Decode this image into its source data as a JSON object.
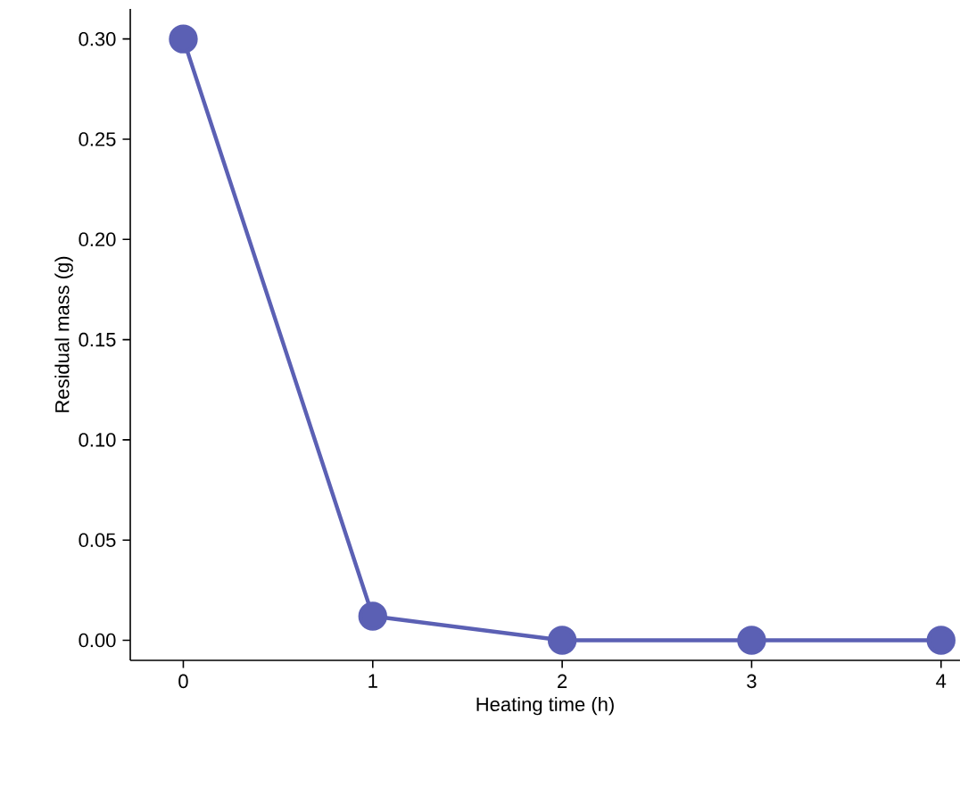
{
  "chart_data": {
    "type": "line",
    "xlabel": "Heating time (h)",
    "ylabel": "Residual mass (g)",
    "x": [
      0,
      1,
      2,
      3,
      4
    ],
    "series": [
      {
        "color": "#5b60b4",
        "values": [
          0.3,
          0.012,
          0.0,
          0.0,
          0.0
        ]
      }
    ],
    "xlim": [
      -0.28,
      4.1
    ],
    "ylim": [
      -0.01,
      0.315
    ],
    "xticks": [
      0,
      1,
      2,
      3,
      4
    ],
    "yticks": [
      {
        "value": 0,
        "label": "0.00"
      },
      {
        "value": 0.05,
        "label": "0.05"
      },
      {
        "value": 0.1,
        "label": "0.10"
      },
      {
        "value": 0.15,
        "label": "0.15"
      },
      {
        "value": 0.2,
        "label": "0.20"
      },
      {
        "value": 0.25,
        "label": "0.25"
      },
      {
        "value": 0.3,
        "label": "0.30"
      }
    ],
    "marker": "circle",
    "line_style": "solid"
  }
}
